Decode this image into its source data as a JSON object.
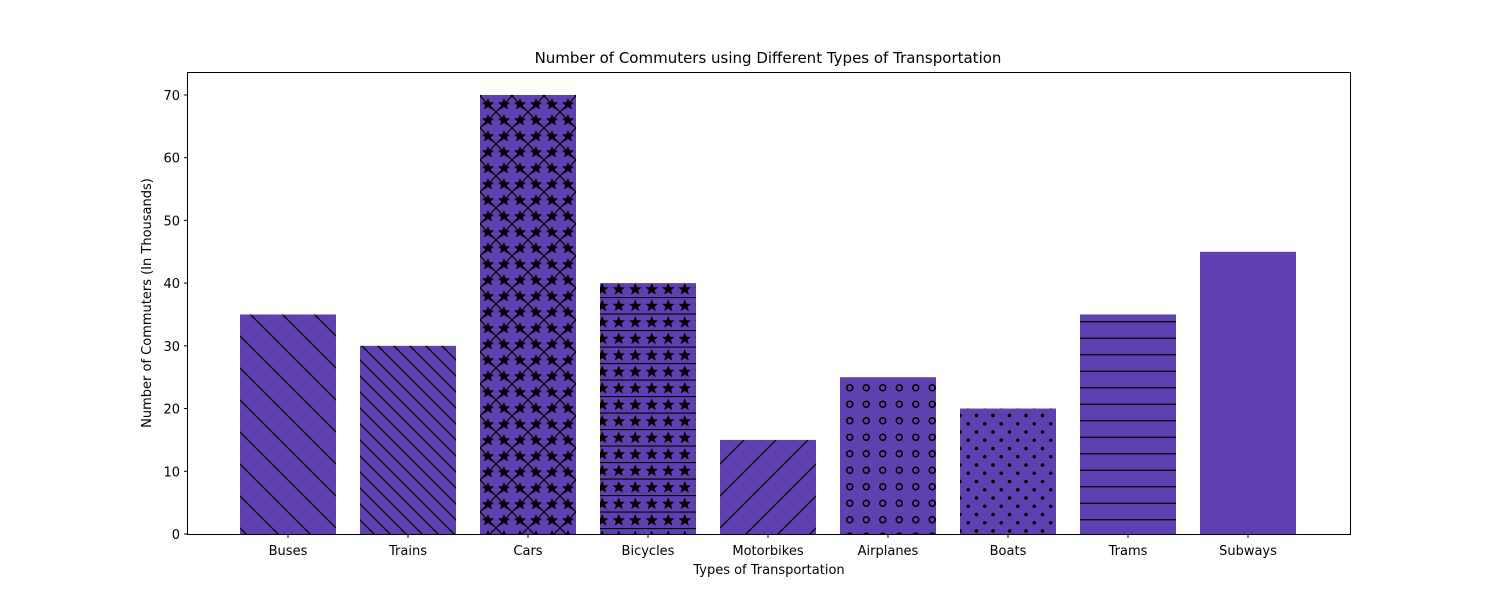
{
  "chart_data": {
    "type": "bar",
    "title": "Number of Commuters using Different Types of Transportation",
    "xlabel": "Types of Transportation",
    "ylabel": "Number of Commuters (In Thousands)",
    "categories": [
      "Buses",
      "Trains",
      "Cars",
      "Bicycles",
      "Motorbikes",
      "Airplanes",
      "Boats",
      "Trams",
      "Subways"
    ],
    "values": [
      35,
      30,
      70,
      40,
      15,
      25,
      20,
      35,
      45
    ],
    "hatches": [
      "\\",
      "\\\\",
      "x*",
      "-*",
      "/",
      "o",
      ".",
      "-",
      ""
    ],
    "ylim": [
      0,
      73.5
    ],
    "yticks": [
      0,
      10,
      20,
      30,
      40,
      50,
      60,
      70
    ],
    "bar_color": "#5e40b0",
    "grid": false,
    "legend": "none"
  }
}
